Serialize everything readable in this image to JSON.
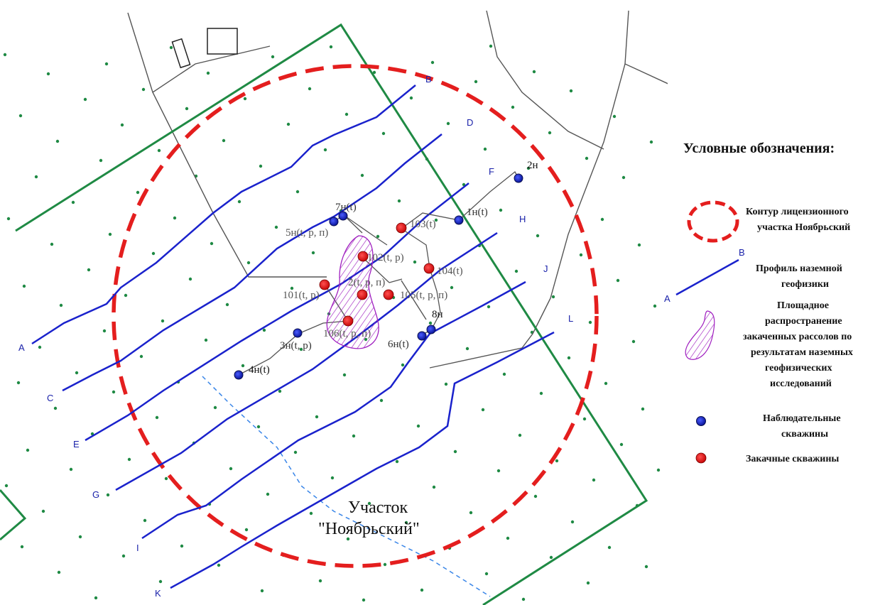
{
  "colors": {
    "license_contour": "#e41e1e",
    "profile_line": "#1a22cc",
    "area_boundary": "#1f8a44",
    "road": "#555555",
    "hatch": "#a020c0",
    "observation_well": "#1a22cc",
    "injection_well": "#e41e1e",
    "stream": "#3a86e8",
    "grid_dot": "#1f8a44"
  },
  "map": {
    "area_title_line1": "Участок",
    "area_title_line2": "\"Ноябрьский\"",
    "profiles": [
      {
        "start": "A",
        "end": "B"
      },
      {
        "start": "C",
        "end": "D"
      },
      {
        "start": "E",
        "end": "F"
      },
      {
        "start": "G",
        "end": "H"
      },
      {
        "start": "I",
        "end": "J"
      },
      {
        "start": "K",
        "end": "L"
      }
    ],
    "wells": [
      {
        "id": "2н",
        "type": "observation"
      },
      {
        "id": "7н(t)",
        "type": "observation"
      },
      {
        "id": "5н(t, р, п)",
        "type": "observation"
      },
      {
        "id": "1н(t)",
        "type": "observation"
      },
      {
        "id": "103(t)",
        "type": "injection"
      },
      {
        "id": "102(t, р)",
        "type": "injection"
      },
      {
        "id": "104(t)",
        "type": "injection"
      },
      {
        "id": "101(t, р)",
        "type": "injection"
      },
      {
        "id": "2(t, р, п)",
        "type": "injection"
      },
      {
        "id": "105(t, р, п)",
        "type": "injection"
      },
      {
        "id": "106(t, р, п)",
        "type": "injection"
      },
      {
        "id": "8н",
        "type": "observation"
      },
      {
        "id": "6н(t)",
        "type": "observation"
      },
      {
        "id": "3н(t, р)",
        "type": "observation"
      },
      {
        "id": "4н(t)",
        "type": "observation"
      }
    ]
  },
  "legend": {
    "title": "Условные обозначения:",
    "license_line1": "Контур лицензионного",
    "license_line2": "участка Ноябрьский",
    "profile_start": "A",
    "profile_end": "B",
    "profile_line1": "Профиль наземной",
    "profile_line2": "геофизики",
    "brine_line1": "Площадное",
    "brine_line2": "распространение",
    "brine_line3": "закаченных рассолов по",
    "brine_line4": "результатам наземных",
    "brine_line5": "геофизических",
    "brine_line6": "исследований",
    "obs_line1": "Наблюдательные",
    "obs_line2": "скважины",
    "inj_line1": "Закачные скважины"
  }
}
